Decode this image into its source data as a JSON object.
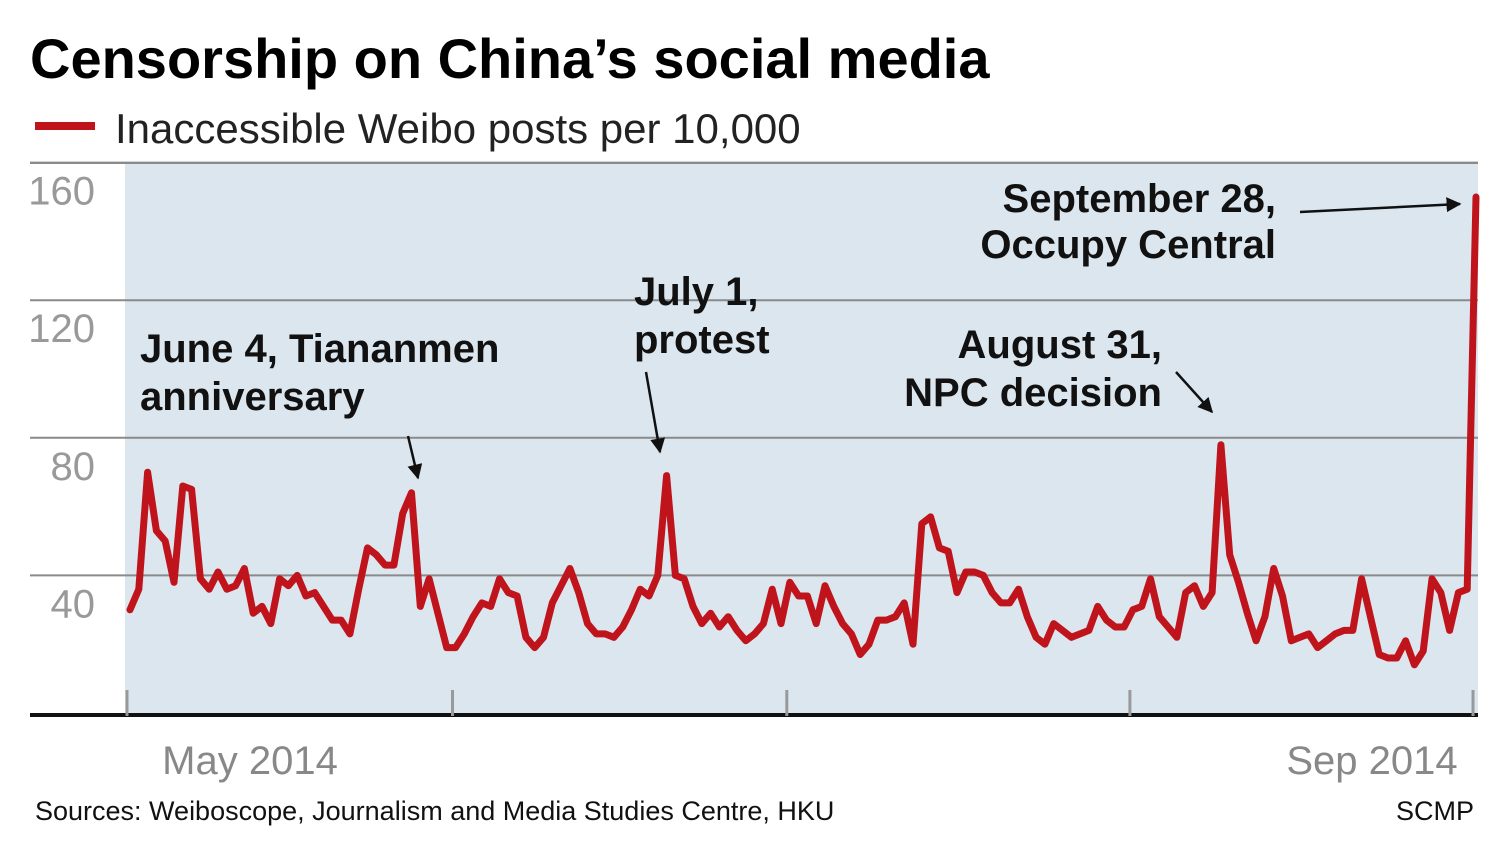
{
  "chart_data": {
    "type": "line",
    "title": "Censorship on China’s social media",
    "legend": "Inaccessible Weibo posts per 10,000",
    "ylim": [
      0,
      160
    ],
    "yticks": [
      40,
      80,
      120,
      160
    ],
    "x_start_label": "May 2014",
    "x_end_label": "Sep 2014",
    "series": [
      {
        "name": "Inaccessible Weibo posts per 10,000",
        "color": "#c0141c",
        "values": [
          30,
          36,
          70,
          53,
          50,
          38,
          66,
          65,
          39,
          36,
          41,
          36,
          37,
          42,
          29,
          31,
          26,
          39,
          37,
          40,
          34,
          35,
          31,
          27,
          27,
          23,
          36,
          48,
          46,
          43,
          43,
          58,
          64,
          31,
          39,
          29,
          19,
          19,
          23,
          28,
          32,
          31,
          39,
          35,
          34,
          22,
          19,
          22,
          32,
          37,
          42,
          35,
          26,
          23,
          23,
          22,
          25,
          30,
          36,
          34,
          40,
          69,
          40,
          39,
          31,
          26,
          29,
          25,
          28,
          24,
          21,
          23,
          26,
          36,
          26,
          38,
          34,
          34,
          26,
          37,
          31,
          26,
          23,
          17,
          20,
          27,
          27,
          28,
          32,
          20,
          55,
          57,
          48,
          47,
          35,
          41,
          41,
          40,
          35,
          32,
          32,
          36,
          28,
          22,
          20,
          26,
          24,
          22,
          23,
          24,
          31,
          27,
          25,
          25,
          30,
          31,
          39,
          28,
          25,
          22,
          35,
          37,
          31,
          35,
          78,
          46,
          38,
          29,
          21,
          28,
          42,
          34,
          21,
          22,
          23,
          19,
          21,
          23,
          24,
          24,
          39,
          28,
          17,
          16,
          16,
          21,
          14,
          18,
          39,
          35,
          24,
          35,
          36,
          150
        ],
        "x_min": 0,
        "x_max": 153
      }
    ],
    "x_gridline_ticks_at_index": [
      0,
      37,
      75,
      114,
      153
    ],
    "annotations": [
      {
        "lines": [
          "June 4, Tiananmen",
          "anniversary"
        ],
        "point_index": 32
      },
      {
        "lines": [
          "July 1,",
          "protest"
        ],
        "point_index": 61
      },
      {
        "lines": [
          "August 31,",
          "NPC decision"
        ],
        "point_index": 124
      },
      {
        "lines": [
          "September 28,",
          "Occupy Central"
        ],
        "point_index": 153
      }
    ]
  },
  "footer": {
    "sources": "Sources: Weiboscope, Journalism and Media Studies Centre, HKU",
    "credit": "SCMP"
  }
}
